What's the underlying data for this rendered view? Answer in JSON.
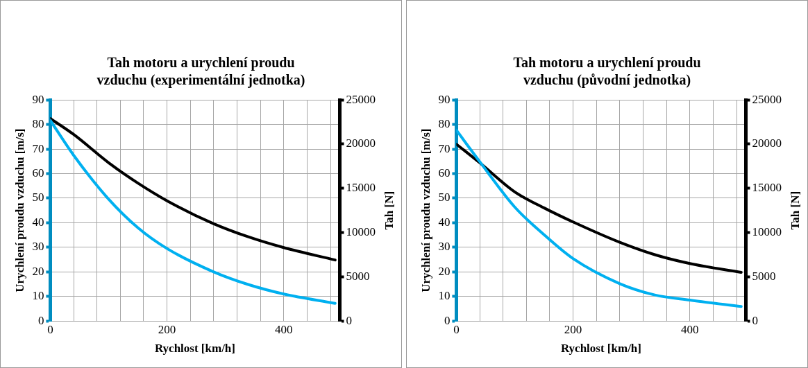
{
  "chart_data": [
    {
      "type": "line",
      "title": "Tah motoru a urychlení proudu vzduchu (experimentální jednotka)",
      "xlabel": "Rychlost [km/h]",
      "ylabel": "Urychlení proudu vzduchu [m/s]",
      "y2label": "Tah [N]",
      "xlim": [
        0,
        496
      ],
      "xticks": [
        0,
        {
          "value": 40,
          "label": null
        },
        {
          "value": 80,
          "label": null
        },
        {
          "value": 120,
          "label": null
        },
        {
          "value": 160,
          "label": null
        },
        200,
        {
          "value": 240,
          "label": null
        },
        {
          "value": 280,
          "label": null
        },
        {
          "value": 320,
          "label": null
        },
        {
          "value": 360,
          "label": null
        },
        400,
        {
          "value": 440,
          "label": null
        },
        {
          "value": 480,
          "label": null
        }
      ],
      "ylim": [
        0,
        90
      ],
      "yticks": [
        0,
        10,
        20,
        30,
        40,
        50,
        60,
        70,
        80,
        90
      ],
      "y2lim": [
        0,
        25000
      ],
      "y2ticks": [
        0,
        5000,
        10000,
        15000,
        20000,
        25000
      ],
      "grid": true,
      "legend": false,
      "marker": "none",
      "line_style": "solid",
      "series": [
        {
          "color": "#00b0f0",
          "x": [
            0,
            40,
            100,
            150,
            200,
            280,
            340,
            400,
            488
          ],
          "values": [
            81.7,
            67.5,
            49.6,
            38,
            29.5,
            20,
            14.8,
            11,
            7.2
          ]
        },
        {
          "color": "#000000",
          "axis": "y2",
          "x": [
            0,
            40,
            100,
            150,
            200,
            280,
            340,
            400,
            488
          ],
          "values": [
            22900,
            21100,
            17900,
            15600,
            13600,
            11000,
            9500,
            8300,
            6900
          ]
        }
      ]
    },
    {
      "type": "line",
      "title": "Tah motoru a urychlení proudu vzduchu  (původní jednotka)",
      "xlabel": "Rychlost [km/h]",
      "ylabel": "Urychlení proudu vzduchu [m/s]",
      "y2label": "Tah [N]",
      "xlim": [
        0,
        496
      ],
      "xticks": [
        0,
        {
          "value": 40,
          "label": null
        },
        {
          "value": 80,
          "label": null
        },
        {
          "value": 120,
          "label": null
        },
        {
          "value": 160,
          "label": null
        },
        200,
        {
          "value": 240,
          "label": null
        },
        {
          "value": 280,
          "label": null
        },
        {
          "value": 320,
          "label": null
        },
        {
          "value": 360,
          "label": null
        },
        400,
        {
          "value": 440,
          "label": null
        },
        {
          "value": 480,
          "label": null
        }
      ],
      "ylim": [
        0,
        90
      ],
      "yticks": [
        0,
        10,
        20,
        30,
        40,
        50,
        60,
        70,
        80,
        90
      ],
      "y2lim": [
        0,
        25000
      ],
      "y2ticks": [
        0,
        5000,
        10000,
        15000,
        20000,
        25000
      ],
      "grid": true,
      "legend": false,
      "marker": "none",
      "line_style": "solid",
      "series": [
        {
          "color": "#00b0f0",
          "x": [
            0,
            40,
            100,
            150,
            200,
            280,
            340,
            400,
            488
          ],
          "values": [
            77.7,
            64.9,
            46.4,
            35.2,
            25.4,
            15.2,
            10.6,
            8.5,
            5.9
          ]
        },
        {
          "color": "#000000",
          "axis": "y2",
          "x": [
            0,
            40,
            100,
            150,
            200,
            280,
            340,
            400,
            488
          ],
          "values": [
            20000,
            17900,
            14600,
            12800,
            11200,
            8900,
            7500,
            6500,
            5500
          ]
        }
      ]
    }
  ]
}
